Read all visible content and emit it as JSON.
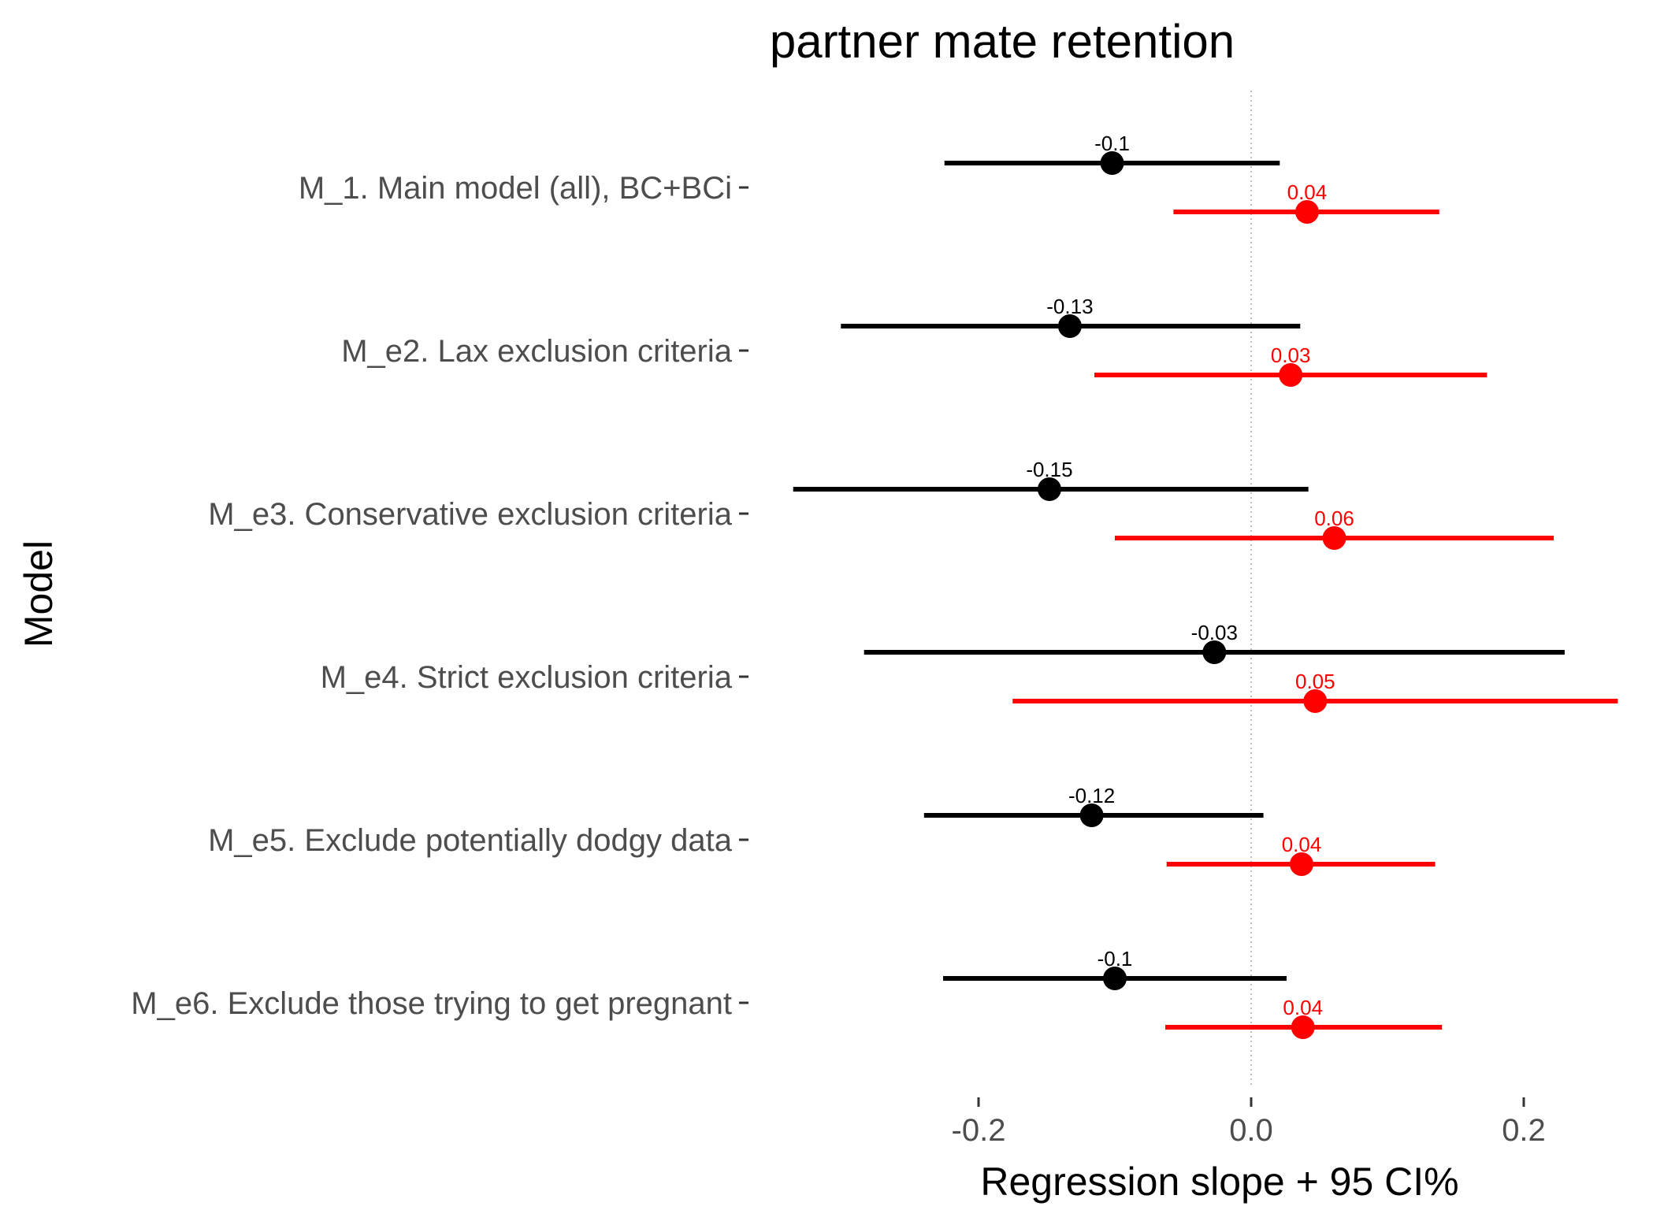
{
  "chart_data": {
    "type": "scatter",
    "title": "partner mate retention",
    "xlabel": "Regression slope + 95 CI%",
    "ylabel": "Model",
    "xlim": [
      -0.3,
      0.3
    ],
    "x_ticks": [
      -0.2,
      0.0,
      0.2
    ],
    "x_tick_labels": [
      "-0.2",
      "0.0",
      "0.2"
    ],
    "grid": false,
    "reference_line": 0,
    "categories": [
      "M_1. Main model (all), BC+BCi",
      "M_e2. Lax exclusion criteria",
      "M_e3. Conservative exclusion criteria",
      "M_e4. Strict exclusion criteria",
      "M_e5. Exclude potentially dodgy data",
      "M_e6. Exclude those trying to get pregnant"
    ],
    "series": [
      {
        "color": "#000000",
        "values": [
          -0.102,
          -0.133,
          -0.148,
          -0.027,
          -0.117,
          -0.1
        ],
        "ci_low": [
          -0.225,
          -0.301,
          -0.336,
          -0.284,
          -0.24,
          -0.226
        ],
        "ci_high": [
          0.021,
          0.036,
          0.042,
          0.23,
          0.009,
          0.026
        ],
        "labels": [
          "-0.1",
          "-0.13",
          "-0.15",
          "-0.03",
          "-0.12",
          "-0.1"
        ]
      },
      {
        "color": "#ff0000",
        "values": [
          0.041,
          0.029,
          0.061,
          0.047,
          0.037,
          0.038
        ],
        "ci_low": [
          -0.057,
          -0.115,
          -0.1,
          -0.175,
          -0.062,
          -0.063
        ],
        "ci_high": [
          0.138,
          0.173,
          0.222,
          0.269,
          0.135,
          0.14
        ],
        "labels": [
          "0.04",
          "0.03",
          "0.06",
          "0.05",
          "0.04",
          "0.04"
        ]
      }
    ]
  }
}
